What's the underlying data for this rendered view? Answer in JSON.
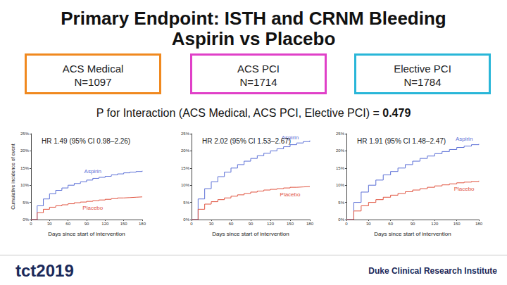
{
  "slide": {
    "title": [
      "Primary Endpoint: ISTH and CRNM Bleeding",
      "Aspirin vs Placebo"
    ],
    "boxes": [
      {
        "label": "ACS Medical",
        "n": "N=1097",
        "color": "#f0891f"
      },
      {
        "label": "ACS PCI",
        "n": "N=1714",
        "color": "#e040c8"
      },
      {
        "label": "Elective PCI",
        "n": "N=1784",
        "color": "#29b6d8"
      }
    ],
    "interaction_text": "P for Interaction (ACS Medical, ACS PCI, Elective PCI) =",
    "p_interaction": 0.479,
    "footer_left": "tct2019",
    "footer_right": "Duke Clinical Research Institute"
  },
  "chart_data": [
    {
      "type": "line",
      "annotation": "HR 1.49 (95% CI 0.98–2.26)",
      "ylabel": "Cumulative incidence of event",
      "xlabel": "Days since start of intervention",
      "x": [
        0,
        10,
        20,
        30,
        40,
        50,
        60,
        70,
        80,
        90,
        100,
        110,
        120,
        130,
        140,
        150,
        160,
        170,
        180
      ],
      "xlim": [
        0,
        180
      ],
      "xticks": [
        0,
        30,
        60,
        90,
        120,
        150,
        180
      ],
      "ylim": [
        0,
        25
      ],
      "yticks": [
        {
          "value": 0,
          "label": "0%"
        },
        {
          "value": 5,
          "label": "5%"
        },
        {
          "value": 10,
          "label": "10%"
        },
        {
          "value": 15,
          "label": "15%"
        },
        {
          "value": 20,
          "label": "20%"
        },
        {
          "value": 25,
          "label": "25%"
        }
      ],
      "grid": false,
      "series": [
        {
          "name": "Aspirin",
          "color": "#5b6fd6",
          "values": [
            0,
            4,
            6,
            7.5,
            8.5,
            9.2,
            10,
            10.5,
            11,
            11.5,
            12,
            12.3,
            12.6,
            13,
            13.3,
            13.6,
            13.8,
            14,
            14.2
          ]
        },
        {
          "name": "Placebo",
          "color": "#e0533f",
          "values": [
            0,
            2,
            3,
            3.6,
            4,
            4.3,
            4.6,
            4.9,
            5.1,
            5.3,
            5.5,
            5.7,
            5.9,
            6.1,
            6.3,
            6.4,
            6.5,
            6.6,
            6.7
          ]
        }
      ]
    },
    {
      "type": "line",
      "annotation": "HR 2.02 (95% CI 1.53–2.67)",
      "xlabel": "Days since start of intervention",
      "x": [
        0,
        10,
        20,
        30,
        40,
        50,
        60,
        70,
        80,
        90,
        100,
        110,
        120,
        130,
        140,
        150,
        160,
        170,
        180
      ],
      "xlim": [
        0,
        180
      ],
      "xticks": [
        0,
        30,
        60,
        90,
        120,
        150,
        180
      ],
      "ylim": [
        0,
        25
      ],
      "yticks": [
        {
          "value": 0,
          "label": "0%"
        },
        {
          "value": 5,
          "label": "5%"
        },
        {
          "value": 10,
          "label": "10%"
        },
        {
          "value": 15,
          "label": "15%"
        },
        {
          "value": 20,
          "label": "20%"
        },
        {
          "value": 25,
          "label": "25%"
        }
      ],
      "grid": false,
      "series": [
        {
          "name": "Aspirin",
          "color": "#5b6fd6",
          "values": [
            0,
            6,
            9,
            11,
            12.5,
            13.8,
            15,
            16,
            17,
            17.8,
            18.6,
            19.3,
            20,
            20.6,
            21.2,
            21.8,
            22.3,
            22.7,
            23
          ]
        },
        {
          "name": "Placebo",
          "color": "#e0533f",
          "values": [
            0,
            3,
            4.5,
            5.2,
            5.8,
            6.3,
            6.8,
            7.2,
            7.6,
            8,
            8.3,
            8.6,
            8.8,
            9,
            9.2,
            9.4,
            9.5,
            9.6,
            9.7
          ]
        }
      ]
    },
    {
      "type": "line",
      "annotation": "HR 1.91 (95% CI 1.48–2.47)",
      "xlabel": "Days since start of intervention",
      "x": [
        0,
        10,
        20,
        30,
        40,
        50,
        60,
        70,
        80,
        90,
        100,
        110,
        120,
        130,
        140,
        150,
        160,
        170,
        180
      ],
      "xlim": [
        0,
        180
      ],
      "xticks": [
        0,
        30,
        60,
        90,
        120,
        150,
        180
      ],
      "ylim": [
        0,
        25
      ],
      "yticks": [
        {
          "value": 0,
          "label": "0%"
        },
        {
          "value": 5,
          "label": "5%"
        },
        {
          "value": 10,
          "label": "10%"
        },
        {
          "value": 15,
          "label": "15%"
        },
        {
          "value": 20,
          "label": "20%"
        },
        {
          "value": 25,
          "label": "25%"
        }
      ],
      "grid": false,
      "series": [
        {
          "name": "Aspirin",
          "color": "#5b6fd6",
          "values": [
            0,
            5,
            8,
            10,
            11.5,
            13,
            14,
            15,
            16,
            17,
            17.8,
            18.5,
            19.2,
            19.8,
            20.4,
            21,
            21.4,
            21.8,
            22
          ]
        },
        {
          "name": "Placebo",
          "color": "#e0533f",
          "values": [
            0,
            2.5,
            4,
            5,
            5.8,
            6.5,
            7.1,
            7.6,
            8.1,
            8.6,
            9,
            9.4,
            9.8,
            10.1,
            10.4,
            10.7,
            10.9,
            11.1,
            11.3
          ]
        }
      ]
    }
  ]
}
